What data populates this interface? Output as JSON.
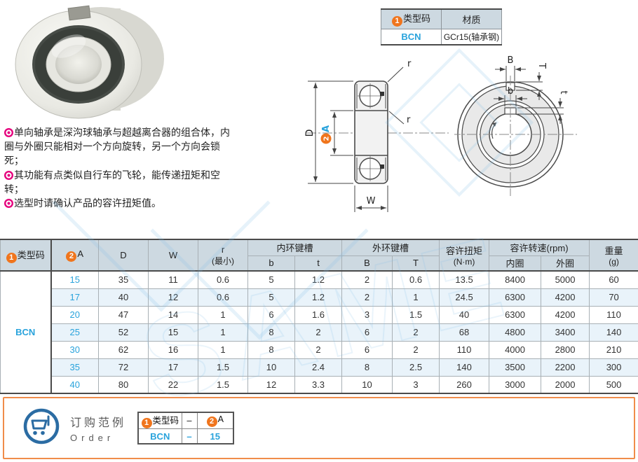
{
  "colors": {
    "accent_orange": "#f0751d",
    "link_blue": "#29a3dc",
    "header_bg": "#cdd9e1",
    "alt_row_bg": "#e9f3fa",
    "bullet_magenta": "#e5007d",
    "order_border": "#f08c4a",
    "cart_blue": "#2b6ca3"
  },
  "spec_table": {
    "badge": "1",
    "col1_header": "类型码",
    "col2_header": "材质",
    "type_code": "BCN",
    "material": "GCr15(轴承钢)"
  },
  "description": {
    "items": [
      "单向轴承是深沟球轴承与超越离合器的组合体，内圈与外圈只能相对一个方向旋转，另一个方向会锁死；",
      "其功能有点类似自行车的飞轮，能传递扭矩和空转；",
      "选型时请确认产品的容许扭矩值。"
    ]
  },
  "drawings": {
    "left": {
      "r_top": "r",
      "r_mid": "r",
      "d": "D",
      "a_badge": "2",
      "a": "A",
      "w": "W"
    },
    "right": {
      "B": "B",
      "T": "T",
      "b": "b",
      "t": "t"
    }
  },
  "main_table": {
    "headers": {
      "type_badge": "1",
      "type_code": "类型码",
      "a_badge": "2",
      "a": "A",
      "d": "D",
      "w": "W",
      "r_line1": "r",
      "r_line2": "(最小)",
      "inner_keyway": "内环键槽",
      "b": "b",
      "t": "t",
      "outer_keyway": "外环键槽",
      "B": "B",
      "T": "T",
      "torque_line1": "容许扭矩",
      "torque_line2": "(N·m)",
      "speed": "容许转速(rpm)",
      "speed_inner": "内圈",
      "speed_outer": "外圈",
      "weight_line1": "重量",
      "weight_line2": "(g)"
    },
    "type_code": "BCN",
    "rows": [
      [
        "15",
        "35",
        "11",
        "0.6",
        "5",
        "1.2",
        "2",
        "0.6",
        "13.5",
        "8400",
        "5000",
        "60"
      ],
      [
        "17",
        "40",
        "12",
        "0.6",
        "5",
        "1.2",
        "2",
        "1",
        "24.5",
        "6300",
        "4200",
        "70"
      ],
      [
        "20",
        "47",
        "14",
        "1",
        "6",
        "1.6",
        "3",
        "1.5",
        "40",
        "6300",
        "4200",
        "110"
      ],
      [
        "25",
        "52",
        "15",
        "1",
        "8",
        "2",
        "6",
        "2",
        "68",
        "4800",
        "3400",
        "140"
      ],
      [
        "30",
        "62",
        "16",
        "1",
        "8",
        "2",
        "6",
        "2",
        "110",
        "4000",
        "2800",
        "210"
      ],
      [
        "35",
        "72",
        "17",
        "1.5",
        "10",
        "2.4",
        "8",
        "2.5",
        "140",
        "3500",
        "2200",
        "300"
      ],
      [
        "40",
        "80",
        "22",
        "1.5",
        "12",
        "3.3",
        "10",
        "3",
        "260",
        "3000",
        "2000",
        "500"
      ]
    ]
  },
  "order": {
    "title_cn": "订购范例",
    "title_en": "Order",
    "header_badge1": "1",
    "header_col1": "类型码",
    "header_dash": "–",
    "header_badge2": "2",
    "header_col3": "A",
    "row": {
      "code": "BCN",
      "dash": "–",
      "a": "15"
    }
  },
  "watermark": {
    "text": "SAME"
  }
}
